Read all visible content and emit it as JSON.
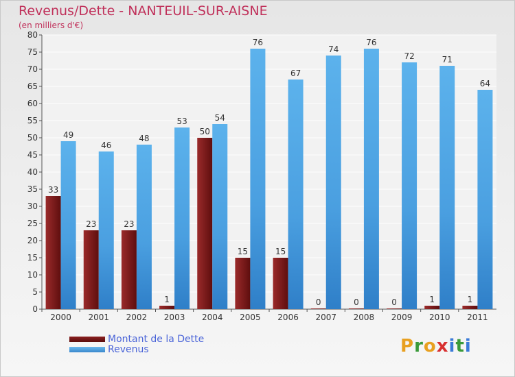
{
  "chart_data": {
    "type": "bar",
    "title": "Revenus/Dette - NANTEUIL-SUR-AISNE",
    "subtitle": "(en milliers d'€)",
    "categories": [
      "2000",
      "2001",
      "2002",
      "2003",
      "2004",
      "2005",
      "2006",
      "2007",
      "2008",
      "2009",
      "2010",
      "2011"
    ],
    "series": [
      {
        "name": "Montant de la Dette",
        "values": [
          33,
          23,
          23,
          1,
          50,
          15,
          15,
          0,
          0,
          0,
          1,
          1
        ],
        "color": "#7a1a1a"
      },
      {
        "name": "Revenus",
        "values": [
          49,
          46,
          48,
          53,
          54,
          76,
          67,
          74,
          76,
          72,
          71,
          64
        ],
        "color": "#4aa3e3"
      }
    ],
    "ylim": [
      0,
      80
    ],
    "ytick_step": 5,
    "grid": true,
    "legend_position": "bottom-left"
  },
  "logo": {
    "letters": [
      "P",
      "r",
      "o",
      "x",
      "i",
      "t",
      "i"
    ],
    "colors": [
      "#e8a020",
      "#3a9a3a",
      "#e8a020",
      "#d83030",
      "#3a7ad8",
      "#3a9a3a",
      "#3a7ad8"
    ]
  },
  "colors": {
    "title": "#c0305a",
    "legend_text": "#4a64d8"
  }
}
